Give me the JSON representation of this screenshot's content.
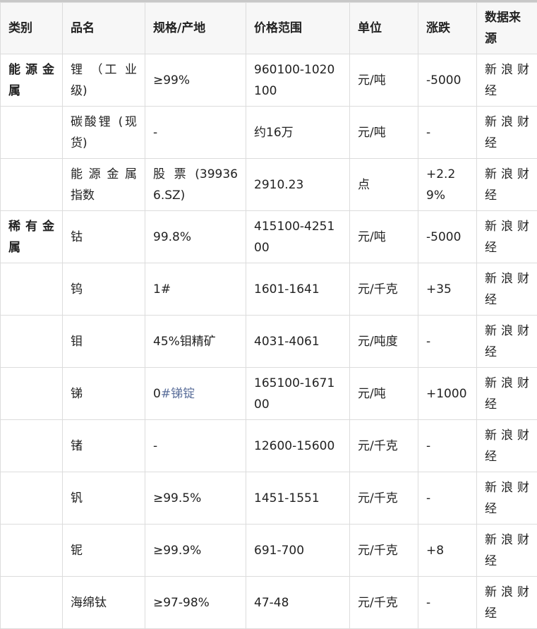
{
  "headers": [
    "类别",
    "品名",
    "规格/产地",
    "价格范围",
    "单位",
    "涨跌",
    "数据来源"
  ],
  "rows": [
    {
      "category": "能源金属",
      "name": "锂 （工 业级)",
      "spec": "≥99%",
      "spec_link": "",
      "price": "960100-1020100",
      "unit": "元/吨",
      "change": "-5000",
      "source": "新浪财经"
    },
    {
      "category": "",
      "name": "碳酸锂 (现货)",
      "spec": "-",
      "spec_link": "",
      "price": "约16万",
      "unit": "元/吨",
      "change": "-",
      "source": "新浪财经"
    },
    {
      "category": "",
      "name": "能 源 金 属 指数",
      "spec": "股 票 (399366.SZ)",
      "spec_link": "",
      "price": "2910.23",
      "unit": "点",
      "change": "+2.29%",
      "source": "新浪财经"
    },
    {
      "category": "稀有金属",
      "name": "钴",
      "spec": "99.8%",
      "spec_link": "",
      "price": "415100-425100",
      "unit": "元/吨",
      "change": "-5000",
      "source": "新浪财经"
    },
    {
      "category": "",
      "name": "钨",
      "spec": "1#",
      "spec_link": "",
      "price": "1601-1641",
      "unit": "元/千克",
      "change": "+35",
      "source": "新浪财经"
    },
    {
      "category": "",
      "name": "钼",
      "spec": "45%钼精矿",
      "spec_link": "",
      "price": "4031-4061",
      "unit": "元/吨度",
      "change": "-",
      "source": "新浪财经"
    },
    {
      "category": "",
      "name": "锑",
      "spec": "0",
      "spec_link": "#锑锭",
      "price": "165100-167100",
      "unit": "元/吨",
      "change": "+1000",
      "source": "新浪财经"
    },
    {
      "category": "",
      "name": "锗",
      "spec": "-",
      "spec_link": "",
      "price": "12600-15600",
      "unit": "元/千克",
      "change": "-",
      "source": "新浪财经"
    },
    {
      "category": "",
      "name": "钒",
      "spec": "≥99.5%",
      "spec_link": "",
      "price": "1451-1551",
      "unit": "元/千克",
      "change": "-",
      "source": "新浪财经"
    },
    {
      "category": "",
      "name": "铌",
      "spec": "≥99.9%",
      "spec_link": "",
      "price": "691-700",
      "unit": "元/千克",
      "change": "+8",
      "source": "新浪财经"
    },
    {
      "category": "",
      "name": "海绵钛",
      "spec": "≥97-98%",
      "spec_link": "",
      "price": "47-48",
      "unit": "元/千克",
      "change": "-",
      "source": "新浪财经"
    }
  ],
  "colors": {
    "header_bg": "#f7f7f7",
    "border": "#dcdcdc",
    "link": "#5a6e9a"
  }
}
